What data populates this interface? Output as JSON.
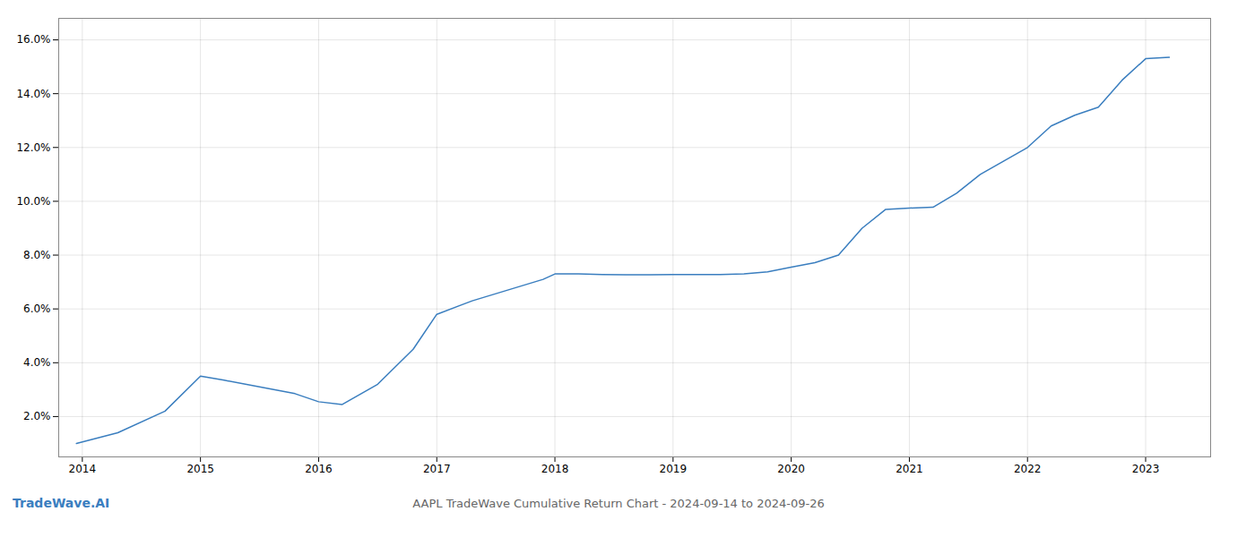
{
  "chart_data": {
    "type": "line",
    "title": "AAPL TradeWave Cumulative Return Chart - 2024-09-14 to 2024-09-26",
    "annotations": [
      {
        "text": "TradeWave.AI",
        "color": "#3a7ebf"
      }
    ],
    "x": [
      2013.95,
      2014.3,
      2014.7,
      2015.0,
      2015.2,
      2015.5,
      2015.8,
      2016.0,
      2016.2,
      2016.5,
      2016.8,
      2017.0,
      2017.3,
      2017.6,
      2017.9,
      2018.0,
      2018.2,
      2018.4,
      2018.6,
      2018.8,
      2019.0,
      2019.2,
      2019.4,
      2019.6,
      2019.8,
      2020.0,
      2020.2,
      2020.4,
      2020.6,
      2020.8,
      2021.0,
      2021.2,
      2021.4,
      2021.6,
      2021.8,
      2022.0,
      2022.2,
      2022.4,
      2022.6,
      2022.8,
      2023.0,
      2023.2
    ],
    "values": [
      1.0,
      1.4,
      2.2,
      3.5,
      3.35,
      3.1,
      2.85,
      2.55,
      2.45,
      3.2,
      4.5,
      5.8,
      6.3,
      6.7,
      7.1,
      7.3,
      7.3,
      7.28,
      7.27,
      7.27,
      7.28,
      7.28,
      7.28,
      7.3,
      7.38,
      7.55,
      7.72,
      8.0,
      9.0,
      9.7,
      9.75,
      9.78,
      10.3,
      11.0,
      11.5,
      12.0,
      12.8,
      13.2,
      13.5,
      14.5,
      15.3,
      15.35
    ],
    "color": "#3a7ebf",
    "xlim": [
      2013.8,
      2023.55
    ],
    "xticks": [
      2014,
      2015,
      2016,
      2017,
      2018,
      2019,
      2020,
      2021,
      2022,
      2023
    ],
    "ylim": [
      0.5,
      16.8
    ],
    "yticks": [
      {
        "value": 2.0,
        "label": "2.0%"
      },
      {
        "value": 4.0,
        "label": "4.0%"
      },
      {
        "value": 6.0,
        "label": "6.0%"
      },
      {
        "value": 8.0,
        "label": "8.0%"
      },
      {
        "value": 10.0,
        "label": "10.0%"
      },
      {
        "value": 12.0,
        "label": "12.0%"
      },
      {
        "value": 14.0,
        "label": "14.0%"
      },
      {
        "value": 16.0,
        "label": "16.0%"
      }
    ],
    "grid": true
  }
}
